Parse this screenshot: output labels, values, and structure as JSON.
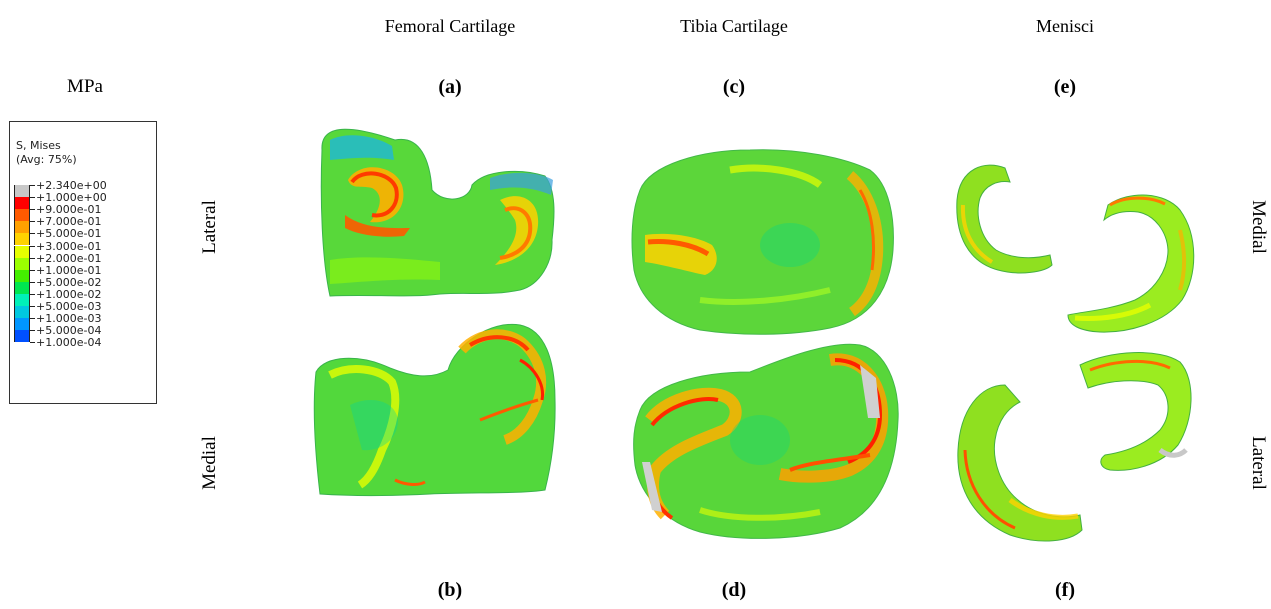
{
  "unit_label": "MPa",
  "legend": {
    "title_line1": "S, Mises",
    "title_line2": "(Avg: 75%)",
    "ticks": [
      "+2.340e+00",
      "+1.000e+00",
      "+9.000e-01",
      "+7.000e-01",
      "+5.000e-01",
      "+3.000e-01",
      "+2.000e-01",
      "+1.000e-01",
      "+5.000e-02",
      "+1.000e-02",
      "+5.000e-03",
      "+1.000e-03",
      "+5.000e-04",
      "+1.000e-04"
    ],
    "colors": [
      "#c8c8c8",
      "#ff0000",
      "#ff5a00",
      "#ffa000",
      "#ffd200",
      "#e6ff00",
      "#9bff00",
      "#44ee00",
      "#00e650",
      "#00f0b8",
      "#00c8e0",
      "#0096ff",
      "#0050ff",
      "#0000e6"
    ]
  },
  "columns": {
    "femoral": "Femoral Cartilage",
    "tibia": "Tibia Cartilage",
    "menisci": "Menisci"
  },
  "panels": {
    "a": "(a)",
    "b": "(b)",
    "c": "(c)",
    "d": "(d)",
    "e": "(e)",
    "f": "(f)"
  },
  "side_labels": {
    "left_top": "Lateral",
    "left_bottom": "Medial",
    "right_top": "Medial",
    "right_bottom": "Lateral"
  }
}
